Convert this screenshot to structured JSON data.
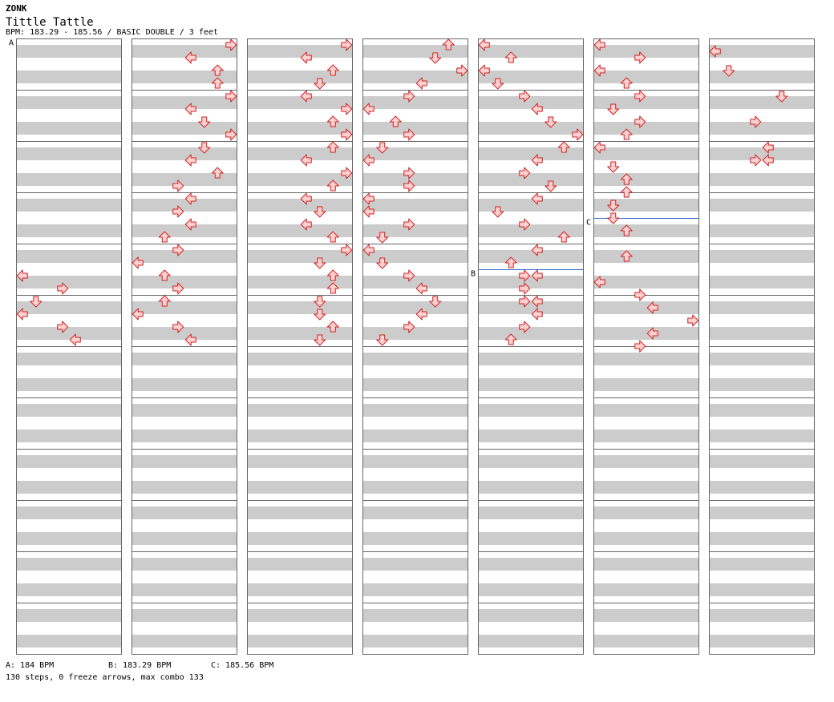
{
  "song": {
    "artist": "ZONK",
    "title": "Tittle Tattle",
    "info": "BPM: 183.29 - 185.56 / BASIC DOUBLE / 3 feet"
  },
  "bpm_legend": {
    "a": "A: 184 BPM",
    "b": "B: 183.29 BPM",
    "c": "C: 185.56 BPM"
  },
  "stats": "130 steps, 0 freeze arrows, max combo 133",
  "colors": {
    "band": "#cccccc",
    "border": "#666666",
    "arrow_fill": "#ffd0d0",
    "arrow_stroke": "#cc2222",
    "bpm_line": "#3a6bc8"
  },
  "chart_data": {
    "type": "step-chart",
    "columns": 7,
    "measures_per_column": 12,
    "rows_per_measure": 8,
    "lanes": 8,
    "lane_names": [
      "P1-left",
      "P1-down",
      "P1-up",
      "P1-right",
      "P2-left",
      "P2-down",
      "P2-up",
      "P2-right"
    ],
    "bpm_changes": [
      {
        "marker": "A",
        "column": 0,
        "row": 0
      },
      {
        "marker": "B",
        "column": 4,
        "row": 36
      },
      {
        "marker": "C",
        "column": 5,
        "row": 28
      }
    ],
    "notes": [
      [
        [
          36,
          "L",
          0
        ],
        [
          38,
          "R",
          3
        ],
        [
          40,
          "D",
          1
        ],
        [
          42,
          "L",
          0
        ],
        [
          44,
          "R",
          3
        ],
        [
          46,
          "L",
          4
        ]
      ],
      [
        [
          0,
          "R",
          7
        ],
        [
          2,
          "L",
          4
        ],
        [
          4,
          "U",
          6
        ],
        [
          6,
          "U",
          6
        ],
        [
          8,
          "R",
          7
        ],
        [
          10,
          "L",
          4
        ],
        [
          12,
          "D",
          5
        ],
        [
          14,
          "R",
          7
        ],
        [
          16,
          "D",
          5
        ],
        [
          18,
          "L",
          4
        ],
        [
          20,
          "U",
          6
        ],
        [
          22,
          "R",
          3
        ],
        [
          24,
          "L",
          4
        ],
        [
          26,
          "R",
          3
        ],
        [
          28,
          "L",
          4
        ],
        [
          30,
          "U",
          2
        ],
        [
          32,
          "R",
          3
        ],
        [
          34,
          "L",
          0
        ],
        [
          36,
          "U",
          2
        ],
        [
          38,
          "R",
          3
        ],
        [
          40,
          "U",
          2
        ],
        [
          42,
          "L",
          0
        ],
        [
          44,
          "R",
          3
        ],
        [
          46,
          "L",
          4
        ]
      ],
      [
        [
          0,
          "R",
          7
        ],
        [
          2,
          "L",
          4
        ],
        [
          4,
          "U",
          6
        ],
        [
          6,
          "D",
          5
        ],
        [
          8,
          "L",
          4
        ],
        [
          10,
          "R",
          7
        ],
        [
          12,
          "U",
          6
        ],
        [
          14,
          "R",
          7
        ],
        [
          16,
          "U",
          6
        ],
        [
          18,
          "L",
          4
        ],
        [
          20,
          "R",
          7
        ],
        [
          22,
          "U",
          6
        ],
        [
          24,
          "L",
          4
        ],
        [
          26,
          "D",
          5
        ],
        [
          28,
          "L",
          4
        ],
        [
          30,
          "U",
          6
        ],
        [
          32,
          "R",
          7
        ],
        [
          34,
          "D",
          5
        ],
        [
          36,
          "U",
          6
        ],
        [
          38,
          "U",
          6
        ],
        [
          40,
          "D",
          5
        ],
        [
          42,
          "D",
          5
        ],
        [
          44,
          "U",
          6
        ],
        [
          46,
          "D",
          5
        ]
      ],
      [
        [
          0,
          "U",
          6
        ],
        [
          2,
          "D",
          5
        ],
        [
          4,
          "R",
          7
        ],
        [
          6,
          "L",
          4
        ],
        [
          8,
          "R",
          3
        ],
        [
          10,
          "L",
          0
        ],
        [
          12,
          "U",
          2
        ],
        [
          14,
          "R",
          3
        ],
        [
          16,
          "D",
          1
        ],
        [
          18,
          "L",
          0
        ],
        [
          20,
          "R",
          3
        ],
        [
          22,
          "R",
          3
        ],
        [
          24,
          "L",
          0
        ],
        [
          26,
          "L",
          0
        ],
        [
          28,
          "R",
          3
        ],
        [
          30,
          "D",
          1
        ],
        [
          32,
          "L",
          0
        ],
        [
          34,
          "D",
          1
        ],
        [
          36,
          "R",
          3
        ],
        [
          38,
          "L",
          4
        ],
        [
          40,
          "D",
          5
        ],
        [
          42,
          "L",
          4
        ],
        [
          44,
          "R",
          3
        ],
        [
          46,
          "D",
          1
        ]
      ],
      [
        [
          0,
          "L",
          0
        ],
        [
          2,
          "U",
          2
        ],
        [
          4,
          "L",
          0
        ],
        [
          6,
          "D",
          1
        ],
        [
          8,
          "R",
          3
        ],
        [
          10,
          "L",
          4
        ],
        [
          12,
          "D",
          5
        ],
        [
          14,
          "R",
          7
        ],
        [
          16,
          "U",
          6
        ],
        [
          18,
          "L",
          4
        ],
        [
          20,
          "R",
          3
        ],
        [
          22,
          "D",
          5
        ],
        [
          24,
          "L",
          4
        ],
        [
          26,
          "D",
          1
        ],
        [
          28,
          "R",
          3
        ],
        [
          30,
          "U",
          6
        ],
        [
          32,
          "L",
          4
        ],
        [
          34,
          "U",
          2
        ],
        [
          36,
          "R",
          3
        ],
        [
          36,
          "L",
          4
        ],
        [
          38,
          "R",
          3
        ],
        [
          40,
          "R",
          3
        ],
        [
          40,
          "L",
          4
        ],
        [
          42,
          "L",
          4
        ],
        [
          44,
          "R",
          3
        ],
        [
          46,
          "U",
          2
        ]
      ],
      [
        [
          0,
          "L",
          0
        ],
        [
          2,
          "R",
          3
        ],
        [
          4,
          "L",
          0
        ],
        [
          6,
          "U",
          2
        ],
        [
          8,
          "R",
          3
        ],
        [
          10,
          "D",
          1
        ],
        [
          12,
          "R",
          3
        ],
        [
          14,
          "U",
          2
        ],
        [
          16,
          "L",
          0
        ],
        [
          19,
          "D",
          1
        ],
        [
          21,
          "U",
          2
        ],
        [
          23,
          "U",
          2
        ],
        [
          25,
          "D",
          1
        ],
        [
          27,
          "D",
          1
        ],
        [
          29,
          "U",
          2
        ],
        [
          33,
          "U",
          2
        ],
        [
          37,
          "L",
          0
        ],
        [
          39,
          "R",
          3
        ],
        [
          41,
          "L",
          4
        ],
        [
          43,
          "R",
          7
        ],
        [
          45,
          "L",
          4
        ],
        [
          47,
          "R",
          3
        ]
      ],
      [
        [
          1,
          "L",
          0
        ],
        [
          4,
          "D",
          1
        ],
        [
          8,
          "D",
          5
        ],
        [
          12,
          "R",
          3
        ],
        [
          16,
          "L",
          4
        ],
        [
          18,
          "R",
          3
        ],
        [
          18,
          "L",
          4
        ]
      ]
    ]
  }
}
